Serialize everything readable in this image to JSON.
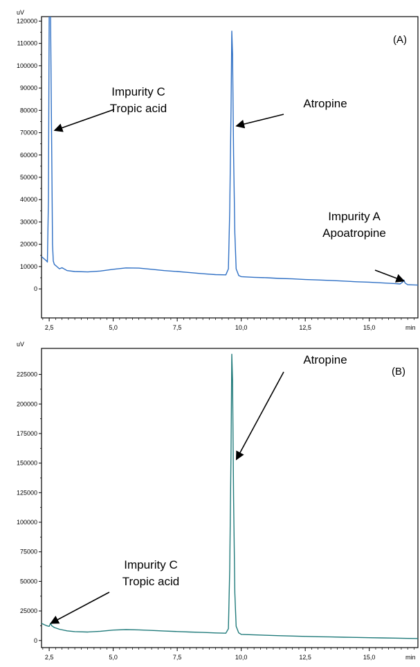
{
  "chart_data": [
    {
      "type": "line",
      "panel_label": "(A)",
      "y_unit_label": "uV",
      "x_unit_label": "min",
      "xlim": [
        2.2,
        16.9
      ],
      "ylim": [
        -13000,
        122000
      ],
      "x_ticks": [
        2.5,
        5.0,
        7.5,
        10.0,
        12.5,
        15.0
      ],
      "x_tick_labels": [
        "2,5",
        "5,0",
        "7,5",
        "10,0",
        "12,5",
        "15,0"
      ],
      "y_ticks": [
        0,
        10000,
        20000,
        30000,
        40000,
        50000,
        60000,
        70000,
        80000,
        90000,
        100000,
        110000,
        120000
      ],
      "y_tick_labels": [
        "0",
        "10000",
        "20000",
        "30000",
        "40000",
        "50000",
        "60000",
        "70000",
        "80000",
        "90000",
        "100000",
        "110000",
        "120000"
      ],
      "grid": false,
      "color": "#2e6fc4",
      "series": [
        {
          "x": [
            2.2,
            2.3,
            2.4,
            2.43,
            2.47,
            2.5,
            2.55,
            2.6,
            2.63,
            2.66,
            2.7,
            2.8,
            2.9,
            3.0,
            3.2,
            3.5,
            4.0,
            4.5,
            5.0,
            5.5,
            6.0,
            6.5,
            7.0,
            7.5,
            8.0,
            8.5,
            9.0,
            9.4,
            9.5,
            9.55,
            9.6,
            9.63,
            9.66,
            9.7,
            9.75,
            9.8,
            9.9,
            10.0,
            10.5,
            11.0,
            11.5,
            12.0,
            12.5,
            13.0,
            13.5,
            14.0,
            14.5,
            15.0,
            15.5,
            16.0,
            16.2,
            16.3,
            16.35,
            16.4,
            16.5,
            16.7,
            16.9
          ],
          "y": [
            14500,
            13500,
            12500,
            12000,
            40000,
            124000,
            124000,
            60000,
            20000,
            12500,
            11000,
            10000,
            9000,
            9500,
            8200,
            7800,
            7600,
            8000,
            8800,
            9400,
            9300,
            8800,
            8200,
            7800,
            7300,
            6800,
            6400,
            6300,
            9000,
            35000,
            80000,
            115500,
            105000,
            60000,
            25000,
            9000,
            6000,
            5500,
            5200,
            5000,
            4700,
            4500,
            4200,
            4000,
            3800,
            3500,
            3200,
            3000,
            2700,
            2400,
            2200,
            3000,
            4000,
            2600,
            1900,
            1800,
            1700
          ]
        }
      ],
      "annotations": [
        {
          "lines": [
            "Impurity C",
            "Tropic acid"
          ],
          "arrow_to": [
            2.6,
            71000
          ]
        },
        {
          "lines": [
            "Atropine"
          ],
          "arrow_to": [
            9.7,
            73000
          ]
        },
        {
          "lines": [
            "Impurity A",
            "Apoatropine"
          ],
          "arrow_to": [
            16.25,
            3500
          ]
        }
      ]
    },
    {
      "type": "line",
      "panel_label": "(B)",
      "y_unit_label": "uV",
      "x_unit_label": "min",
      "xlim": [
        2.2,
        16.9
      ],
      "ylim": [
        -6000,
        247000
      ],
      "x_ticks": [
        2.5,
        5.0,
        7.5,
        10.0,
        12.5,
        15.0
      ],
      "x_tick_labels": [
        "2,5",
        "5,0",
        "7,5",
        "10,0",
        "12,5",
        "15,0"
      ],
      "y_ticks": [
        0,
        25000,
        50000,
        75000,
        100000,
        125000,
        150000,
        175000,
        200000,
        225000
      ],
      "y_tick_labels": [
        "0",
        "25000",
        "50000",
        "75000",
        "100000",
        "125000",
        "150000",
        "175000",
        "200000",
        "225000"
      ],
      "grid": false,
      "color": "#1f7a7a",
      "series": [
        {
          "x": [
            2.2,
            2.3,
            2.4,
            2.5,
            2.55,
            2.6,
            2.7,
            2.9,
            3.2,
            3.5,
            4.0,
            4.5,
            5.0,
            5.5,
            6.0,
            6.5,
            7.0,
            7.5,
            8.0,
            8.5,
            9.0,
            9.4,
            9.5,
            9.55,
            9.6,
            9.63,
            9.66,
            9.7,
            9.75,
            9.8,
            9.9,
            10.0,
            10.5,
            11.0,
            11.5,
            12.0,
            12.5,
            13.0,
            13.5,
            14.0,
            14.5,
            15.0,
            15.5,
            16.0,
            16.5,
            16.9
          ],
          "y": [
            14500,
            13500,
            12500,
            12000,
            14500,
            12500,
            11000,
            9500,
            8200,
            7500,
            7200,
            7800,
            8800,
            9200,
            9000,
            8500,
            8000,
            7600,
            7200,
            6800,
            6400,
            6200,
            10000,
            60000,
            160000,
            242000,
            220000,
            120000,
            40000,
            12000,
            6500,
            5200,
            4800,
            4400,
            4100,
            3800,
            3500,
            3200,
            3000,
            2800,
            2600,
            2400,
            2200,
            2000,
            1800,
            1700
          ]
        }
      ],
      "annotations": [
        {
          "lines": [
            "Atropine"
          ],
          "arrow_to": [
            9.7,
            153000
          ]
        },
        {
          "lines": [
            "Impurity C",
            "Tropic acid"
          ],
          "arrow_to": [
            2.45,
            14500
          ]
        }
      ]
    }
  ]
}
